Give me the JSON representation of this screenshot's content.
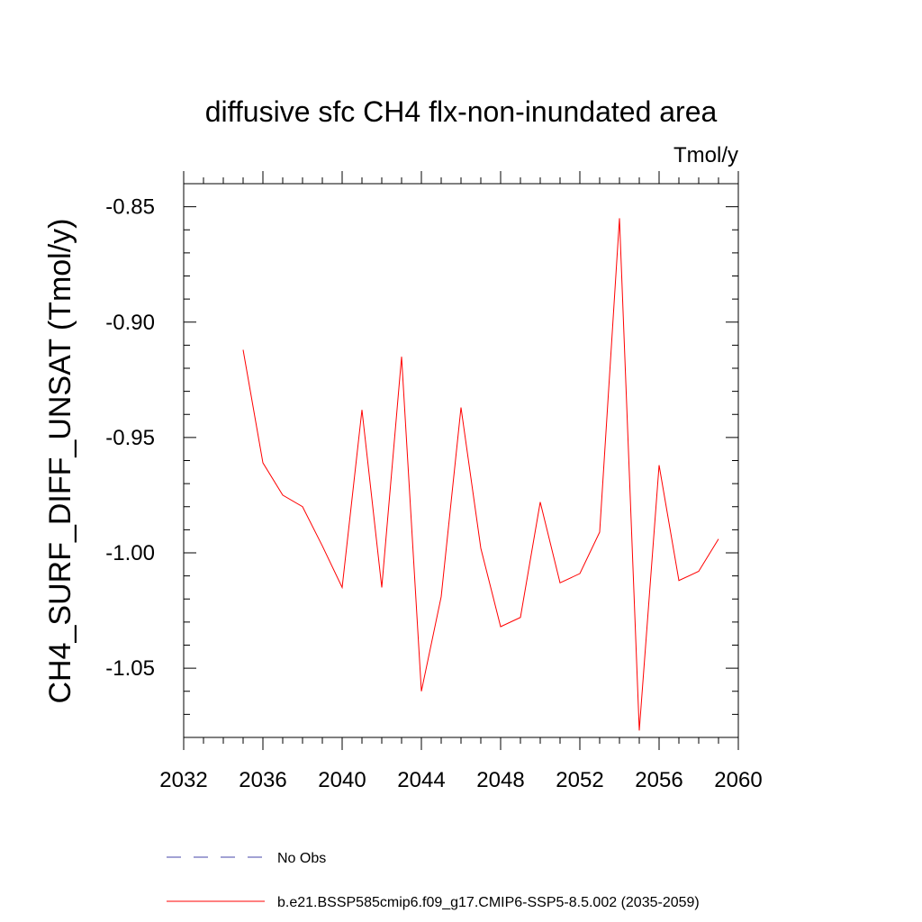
{
  "chart_data": {
    "type": "line",
    "title": "diffusive sfc CH4 flx-non-inundated area",
    "units_label": "Tmol/y",
    "xlabel": "",
    "ylabel": "CH4_SURF_DIFF_UNSAT  (Tmol/y)",
    "xlim": [
      2032,
      2060
    ],
    "ylim": [
      -1.08,
      -0.84
    ],
    "x_ticks": [
      2032,
      2036,
      2040,
      2044,
      2048,
      2052,
      2056,
      2060
    ],
    "x_tick_labels": [
      "2032",
      "2036",
      "2040",
      "2044",
      "2048",
      "2052",
      "2056",
      "2060"
    ],
    "y_ticks": [
      -0.85,
      -0.9,
      -0.95,
      -1.0,
      -1.05
    ],
    "y_tick_labels": [
      "-0.85",
      "-0.90",
      "-0.95",
      "-1.00",
      "-1.05"
    ],
    "grid": false,
    "legend_placement": "bottom",
    "series": [
      {
        "name": "b.e21.BSSP585cmip6.f09_g17.CMIP6-SSP5-8.5.002 (2035-2059)",
        "color": "#ff0000",
        "style": "solid",
        "x": [
          2035,
          2036,
          2037,
          2038,
          2039,
          2040,
          2041,
          2042,
          2043,
          2044,
          2045,
          2046,
          2047,
          2048,
          2049,
          2050,
          2051,
          2052,
          2053,
          2054,
          2055,
          2056,
          2057,
          2058,
          2059
        ],
        "y": [
          -0.912,
          -0.961,
          -0.975,
          -0.98,
          -0.997,
          -1.015,
          -0.938,
          -1.015,
          -0.915,
          -1.06,
          -1.019,
          -0.937,
          -0.998,
          -1.032,
          -1.028,
          -0.978,
          -1.013,
          -1.009,
          -0.991,
          -0.855,
          -1.077,
          -0.962,
          -1.012,
          -1.008,
          -0.994
        ]
      }
    ],
    "legend": [
      {
        "label": "No Obs",
        "color": "#4444aa",
        "style": "dashed"
      },
      {
        "label": "b.e21.BSSP585cmip6.f09_g17.CMIP6-SSP5-8.5.002 (2035-2059)",
        "color": "#ff0000",
        "style": "solid"
      }
    ]
  }
}
